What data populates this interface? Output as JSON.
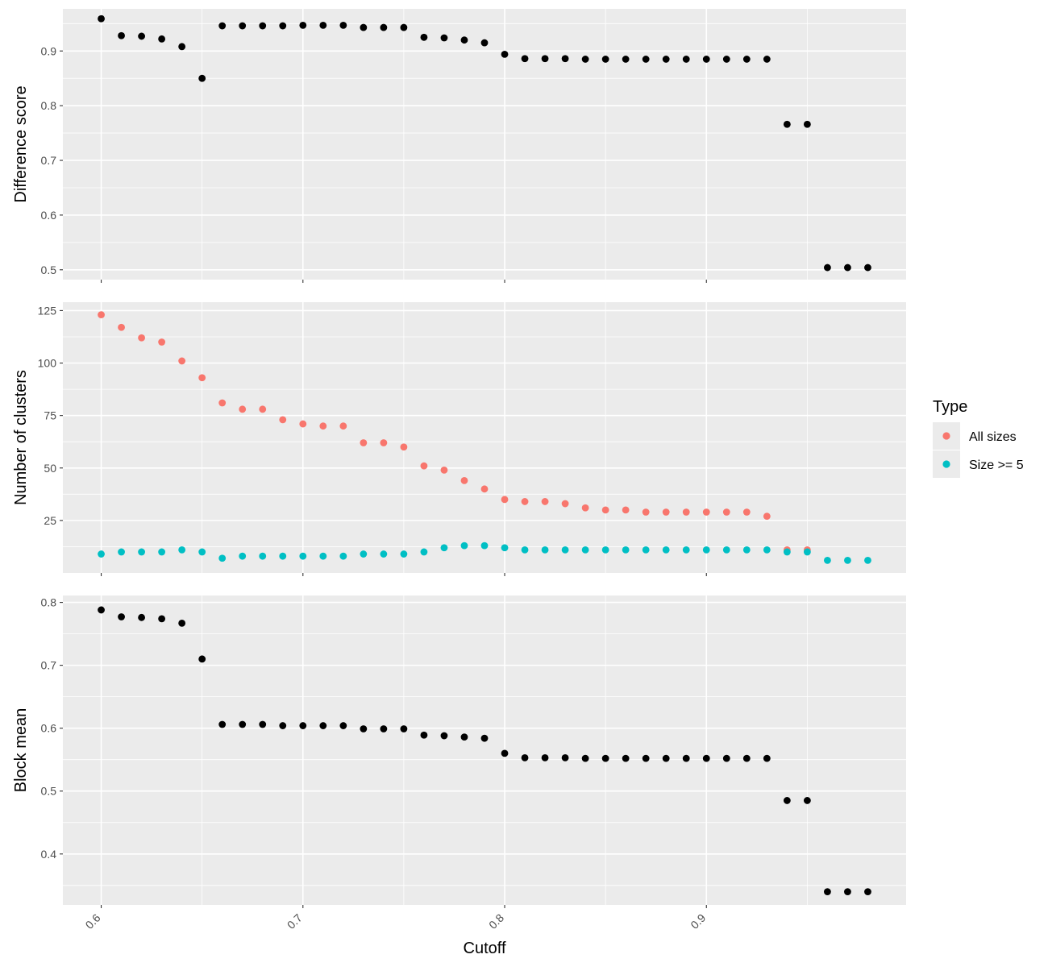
{
  "chart_data": [
    {
      "type": "scatter",
      "ylabel": "Difference score",
      "xlim": [
        0.581,
        0.999
      ],
      "ylim": [
        0.482,
        0.977
      ],
      "yticks": [
        0.5,
        0.6,
        0.7,
        0.8,
        0.9
      ],
      "ytick_labels": [
        "0.5",
        "0.6",
        "0.7",
        "0.8",
        "0.9"
      ],
      "grid": true,
      "series": [
        {
          "color": "#000000",
          "x": [
            0.6,
            0.61,
            0.62,
            0.63,
            0.64,
            0.65,
            0.66,
            0.67,
            0.68,
            0.69,
            0.7,
            0.71,
            0.72,
            0.73,
            0.74,
            0.75,
            0.76,
            0.77,
            0.78,
            0.79,
            0.8,
            0.81,
            0.82,
            0.83,
            0.84,
            0.85,
            0.86,
            0.87,
            0.88,
            0.89,
            0.9,
            0.91,
            0.92,
            0.93,
            0.94,
            0.95,
            0.96,
            0.97,
            0.98
          ],
          "y": [
            0.959,
            0.928,
            0.927,
            0.922,
            0.908,
            0.85,
            0.946,
            0.946,
            0.946,
            0.946,
            0.947,
            0.947,
            0.947,
            0.943,
            0.943,
            0.943,
            0.925,
            0.924,
            0.92,
            0.915,
            0.894,
            0.886,
            0.886,
            0.886,
            0.885,
            0.885,
            0.885,
            0.885,
            0.885,
            0.885,
            0.885,
            0.885,
            0.885,
            0.885,
            0.766,
            0.766,
            0.504,
            0.504,
            0.504
          ]
        }
      ]
    },
    {
      "type": "scatter",
      "ylabel": "Number of clusters",
      "xlim": [
        0.581,
        0.999
      ],
      "ylim": [
        0,
        129
      ],
      "yticks": [
        25,
        50,
        75,
        100,
        125
      ],
      "ytick_labels": [
        "25",
        "50",
        "75",
        "100",
        "125"
      ],
      "grid": true,
      "legend": {
        "title": "Type",
        "placement": "right"
      },
      "series": [
        {
          "name": "All sizes",
          "color": "#F8766D",
          "x": [
            0.6,
            0.61,
            0.62,
            0.63,
            0.64,
            0.65,
            0.66,
            0.67,
            0.68,
            0.69,
            0.7,
            0.71,
            0.72,
            0.73,
            0.74,
            0.75,
            0.76,
            0.77,
            0.78,
            0.79,
            0.8,
            0.81,
            0.82,
            0.83,
            0.84,
            0.85,
            0.86,
            0.87,
            0.88,
            0.89,
            0.9,
            0.91,
            0.92,
            0.93,
            0.94,
            0.95
          ],
          "y": [
            123,
            117,
            112,
            110,
            101,
            93,
            81,
            78,
            78,
            73,
            71,
            70,
            70,
            62,
            62,
            60,
            51,
            49,
            44,
            40,
            35,
            34,
            34,
            33,
            31,
            30,
            30,
            29,
            29,
            29,
            29,
            29,
            29,
            27,
            11,
            11
          ]
        },
        {
          "name": "Size >= 5",
          "color": "#00BFC4",
          "x": [
            0.6,
            0.61,
            0.62,
            0.63,
            0.64,
            0.65,
            0.66,
            0.67,
            0.68,
            0.69,
            0.7,
            0.71,
            0.72,
            0.73,
            0.74,
            0.75,
            0.76,
            0.77,
            0.78,
            0.79,
            0.8,
            0.81,
            0.82,
            0.83,
            0.84,
            0.85,
            0.86,
            0.87,
            0.88,
            0.89,
            0.9,
            0.91,
            0.92,
            0.93,
            0.94,
            0.95,
            0.96,
            0.97,
            0.98
          ],
          "y": [
            9,
            10,
            10,
            10,
            11,
            10,
            7,
            8,
            8,
            8,
            8,
            8,
            8,
            9,
            9,
            9,
            10,
            12,
            13,
            13,
            12,
            11,
            11,
            11,
            11,
            11,
            11,
            11,
            11,
            11,
            11,
            11,
            11,
            11,
            10,
            10,
            6,
            6,
            6
          ]
        }
      ]
    },
    {
      "type": "scatter",
      "ylabel": "Block mean",
      "xlabel": "Cutoff",
      "xlim": [
        0.581,
        0.999
      ],
      "ylim": [
        0.319,
        0.811
      ],
      "yticks": [
        0.4,
        0.5,
        0.6,
        0.7,
        0.8
      ],
      "ytick_labels": [
        "0.4",
        "0.5",
        "0.6",
        "0.7",
        "0.8"
      ],
      "xticks": [
        0.6,
        0.7,
        0.8,
        0.9
      ],
      "xtick_labels": [
        "0.6",
        "0.7",
        "0.8",
        "0.9"
      ],
      "grid": true,
      "series": [
        {
          "color": "#000000",
          "x": [
            0.6,
            0.61,
            0.62,
            0.63,
            0.64,
            0.65,
            0.66,
            0.67,
            0.68,
            0.69,
            0.7,
            0.71,
            0.72,
            0.73,
            0.74,
            0.75,
            0.76,
            0.77,
            0.78,
            0.79,
            0.8,
            0.81,
            0.82,
            0.83,
            0.84,
            0.85,
            0.86,
            0.87,
            0.88,
            0.89,
            0.9,
            0.91,
            0.92,
            0.93,
            0.94,
            0.95,
            0.96,
            0.97,
            0.98
          ],
          "y": [
            0.788,
            0.777,
            0.776,
            0.774,
            0.767,
            0.71,
            0.606,
            0.606,
            0.606,
            0.604,
            0.604,
            0.604,
            0.604,
            0.599,
            0.599,
            0.599,
            0.589,
            0.588,
            0.586,
            0.584,
            0.56,
            0.553,
            0.553,
            0.553,
            0.552,
            0.552,
            0.552,
            0.552,
            0.552,
            0.552,
            0.552,
            0.552,
            0.552,
            0.552,
            0.485,
            0.485,
            0.34,
            0.34,
            0.34
          ]
        }
      ]
    }
  ],
  "legend": {
    "title": "Type",
    "items": [
      {
        "label": "All sizes",
        "color": "#F8766D"
      },
      {
        "label": "Size >= 5",
        "color": "#00BFC4"
      }
    ]
  }
}
